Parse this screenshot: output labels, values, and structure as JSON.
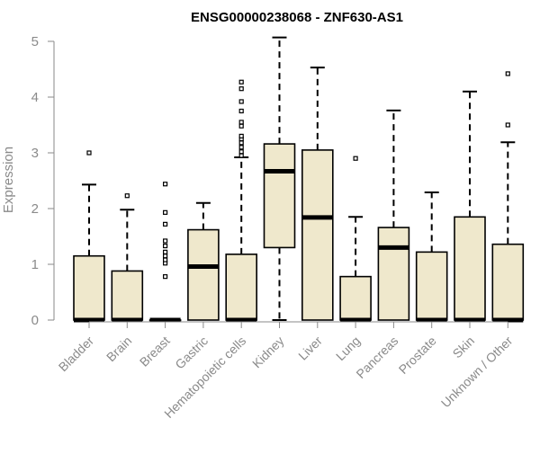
{
  "chart_data": {
    "type": "box",
    "title": "ENSG00000238068 - ZNF630-AS1",
    "xlabel": "",
    "ylabel": "Expression",
    "ylim": [
      0,
      5.1
    ],
    "yticks": [
      0,
      1,
      2,
      3,
      4,
      5
    ],
    "colors": {
      "box_fill": "#efe8cc",
      "stroke": "#000000",
      "axis_text": "#8a8a8a"
    },
    "categories": [
      "Bladder",
      "Brain",
      "Breast",
      "Gastric",
      "Hematopoietic cells",
      "Kidney",
      "Liver",
      "Lung",
      "Pancreas",
      "Prostate",
      "Skin",
      "Unknown / Other"
    ],
    "boxes": [
      {
        "q1": 0,
        "median": 0,
        "q3": 1.15,
        "whisker_low": 0,
        "whisker_high": 2.43,
        "outliers": [
          3.0
        ]
      },
      {
        "q1": 0,
        "median": 0,
        "q3": 0.88,
        "whisker_low": 0,
        "whisker_high": 1.98,
        "outliers": [
          2.23
        ]
      },
      {
        "q1": 0,
        "median": 0,
        "q3": 0,
        "whisker_low": 0,
        "whisker_high": 0,
        "outliers": [
          0.78,
          1.02,
          1.08,
          1.15,
          1.22,
          1.33,
          1.42,
          1.72,
          1.93,
          2.44
        ]
      },
      {
        "q1": 0,
        "median": 0.96,
        "q3": 1.62,
        "whisker_low": 0,
        "whisker_high": 2.1,
        "outliers": []
      },
      {
        "q1": 0,
        "median": 0,
        "q3": 1.18,
        "whisker_low": 0,
        "whisker_high": 2.92,
        "outliers": [
          2.95,
          3.02,
          3.1,
          3.18,
          3.25,
          3.3,
          3.48,
          3.55,
          3.75,
          3.92,
          4.15,
          4.27
        ]
      },
      {
        "q1": 1.3,
        "median": 2.67,
        "q3": 3.16,
        "whisker_low": 0,
        "whisker_high": 5.07,
        "outliers": []
      },
      {
        "q1": 0,
        "median": 1.84,
        "q3": 3.05,
        "whisker_low": 0,
        "whisker_high": 4.53,
        "outliers": []
      },
      {
        "q1": 0,
        "median": 0,
        "q3": 0.78,
        "whisker_low": 0,
        "whisker_high": 1.85,
        "outliers": [
          2.9
        ]
      },
      {
        "q1": 0,
        "median": 1.3,
        "q3": 1.66,
        "whisker_low": 0,
        "whisker_high": 3.76,
        "outliers": []
      },
      {
        "q1": 0,
        "median": 0,
        "q3": 1.22,
        "whisker_low": 0,
        "whisker_high": 2.29,
        "outliers": []
      },
      {
        "q1": 0,
        "median": 0,
        "q3": 1.85,
        "whisker_low": 0,
        "whisker_high": 4.1,
        "outliers": []
      },
      {
        "q1": 0,
        "median": 0,
        "q3": 1.36,
        "whisker_low": 0,
        "whisker_high": 3.19,
        "outliers": [
          3.5,
          4.42
        ]
      }
    ]
  }
}
